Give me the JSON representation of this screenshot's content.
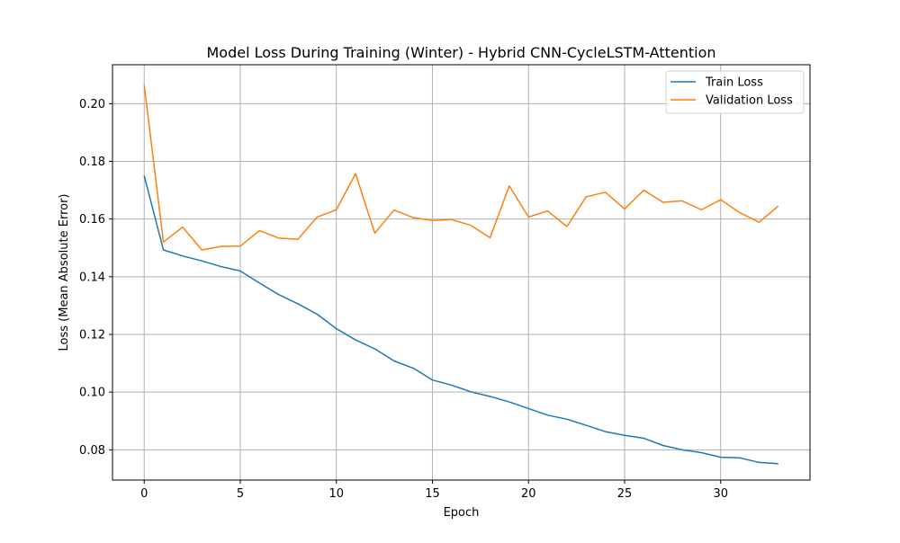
{
  "chart_data": {
    "type": "line",
    "title": "Model Loss During Training (Winter) - Hybrid CNN-CycleLSTM-Attention",
    "xlabel": "Epoch",
    "ylabel": "Loss (Mean Absolute Error)",
    "xlim": [
      -1.65,
      34.65
    ],
    "ylim": [
      0.0695,
      0.2135
    ],
    "x_ticks": [
      0,
      5,
      10,
      15,
      20,
      25,
      30
    ],
    "y_ticks": [
      0.08,
      0.1,
      0.12,
      0.14,
      0.16,
      0.18,
      0.2
    ],
    "x_tick_labels": [
      "0",
      "5",
      "10",
      "15",
      "20",
      "25",
      "30"
    ],
    "y_tick_labels": [
      "0.08",
      "0.10",
      "0.12",
      "0.14",
      "0.16",
      "0.18",
      "0.20"
    ],
    "grid": true,
    "legend_position": "top-right",
    "x": [
      0,
      1,
      2,
      3,
      4,
      5,
      6,
      7,
      8,
      9,
      10,
      11,
      12,
      13,
      14,
      15,
      16,
      17,
      18,
      19,
      20,
      21,
      22,
      23,
      24,
      25,
      26,
      27,
      28,
      29,
      30,
      31,
      32,
      33
    ],
    "series": [
      {
        "name": "Train Loss",
        "color": "#1f77b4",
        "values": [
          0.175,
          0.1493,
          0.1472,
          0.1455,
          0.1435,
          0.142,
          0.1378,
          0.1338,
          0.1306,
          0.127,
          0.122,
          0.1181,
          0.115,
          0.1108,
          0.1083,
          0.1042,
          0.1024,
          0.1001,
          0.0985,
          0.0966,
          0.0943,
          0.092,
          0.0906,
          0.0885,
          0.0863,
          0.085,
          0.084,
          0.0815,
          0.08,
          0.079,
          0.0774,
          0.0772,
          0.0756,
          0.0752
        ]
      },
      {
        "name": "Validation Loss",
        "color": "#ff7f0e",
        "values": [
          0.2065,
          0.152,
          0.1572,
          0.1493,
          0.1505,
          0.1506,
          0.156,
          0.1534,
          0.153,
          0.1607,
          0.1632,
          0.1757,
          0.1551,
          0.1631,
          0.1605,
          0.1595,
          0.1598,
          0.1578,
          0.1535,
          0.1715,
          0.1607,
          0.1628,
          0.1574,
          0.1677,
          0.1693,
          0.1635,
          0.17,
          0.1658,
          0.1663,
          0.1632,
          0.1667,
          0.1622,
          0.1589,
          0.1645
        ]
      }
    ]
  }
}
